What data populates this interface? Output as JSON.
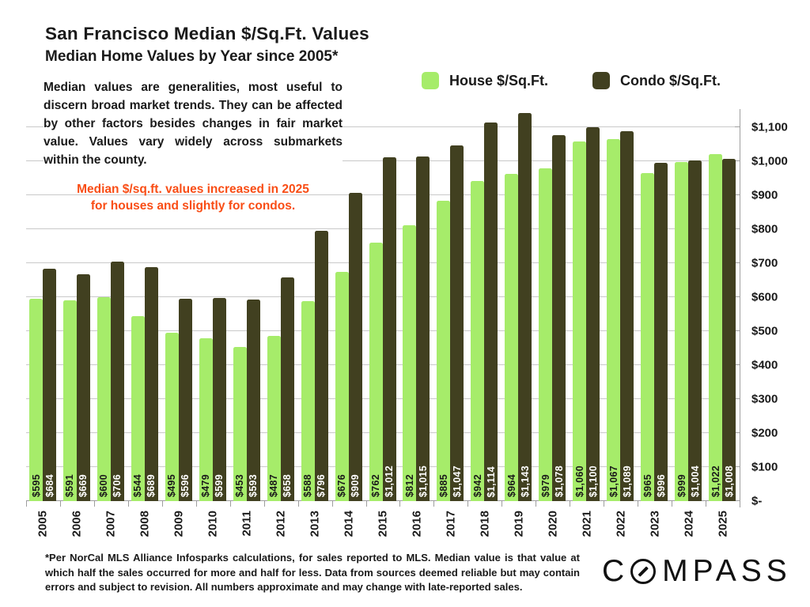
{
  "header": {
    "title": "San Francisco Median $/Sq.Ft. Values",
    "subtitle": "Median Home Values by Year since 2005*"
  },
  "description": "Median values are generalities, most useful to discern broad market trends. They can be affected by other factors besides changes in fair market value. Values vary widely across submarkets within the county.",
  "highlight_note": {
    "line1": "Median $/sq.ft. values increased in 2025",
    "line2": "for houses and slightly for condos.",
    "color": "#F94D15"
  },
  "chart_data": {
    "type": "bar",
    "title": "San Francisco Median $/Sq.Ft. Values",
    "xlabel": "Year",
    "ylabel": "Median $ per Sq.Ft.",
    "ylim": [
      0,
      1150
    ],
    "grid": "horizontal",
    "legend_position": "top",
    "categories": [
      "2005",
      "2006",
      "2007",
      "2008",
      "2009",
      "2010",
      "2011",
      "2012",
      "2013",
      "2014",
      "2015",
      "2016",
      "2017",
      "2018",
      "2019",
      "2020",
      "2021",
      "2022",
      "2023",
      "2024",
      "2025"
    ],
    "series": [
      {
        "name": "House $/Sq.Ft.",
        "color": "#A6EC6A",
        "label_color": "#1A1A1A",
        "values": [
          595,
          591,
          600,
          544,
          495,
          479,
          453,
          487,
          588,
          676,
          762,
          812,
          885,
          942,
          964,
          979,
          1060,
          1067,
          965,
          999,
          1022
        ],
        "labels": [
          "$595",
          "$591",
          "$600",
          "$544",
          "$495",
          "$479",
          "$453",
          "$487",
          "$588",
          "$676",
          "$762",
          "$812",
          "$885",
          "$942",
          "$964",
          "$979",
          "$1,060",
          "$1,067",
          "$965",
          "$999",
          "$1,022"
        ]
      },
      {
        "name": "Condo $/Sq.Ft.",
        "color": "#414020",
        "label_color": "#FFFFFF",
        "values": [
          684,
          669,
          706,
          689,
          596,
          599,
          593,
          658,
          796,
          909,
          1012,
          1015,
          1047,
          1114,
          1143,
          1078,
          1100,
          1089,
          996,
          1004,
          1008
        ],
        "labels": [
          "$684",
          "$669",
          "$706",
          "$689",
          "$596",
          "$599",
          "$593",
          "$658",
          "$796",
          "$909",
          "$1,012",
          "$1,015",
          "$1,047",
          "$1,114",
          "$1,143",
          "$1,078",
          "$1,100",
          "$1,089",
          "$996",
          "$1,004",
          "$1,008"
        ]
      }
    ],
    "y_axis": {
      "ticks": [
        {
          "value": 0,
          "label": "$-"
        },
        {
          "value": 100,
          "label": "$100"
        },
        {
          "value": 200,
          "label": "$200"
        },
        {
          "value": 300,
          "label": "$300"
        },
        {
          "value": 400,
          "label": "$400"
        },
        {
          "value": 500,
          "label": "$500"
        },
        {
          "value": 600,
          "label": "$600"
        },
        {
          "value": 700,
          "label": "$700"
        },
        {
          "value": 800,
          "label": "$800"
        },
        {
          "value": 900,
          "label": "$900"
        },
        {
          "value": 1000,
          "label": "$1,000"
        },
        {
          "value": 1100,
          "label": "$1,100"
        }
      ]
    }
  },
  "footer": {
    "disclaimer": "*Per NorCal MLS Alliance Infosparks calculations, for sales reported to MLS. Median value is that value at which half the sales occurred for more and half for less. Data from sources deemed reliable but may contain errors and subject to revision. All numbers approximate and may change with late-reported sales.",
    "brand": "COMPASS"
  }
}
